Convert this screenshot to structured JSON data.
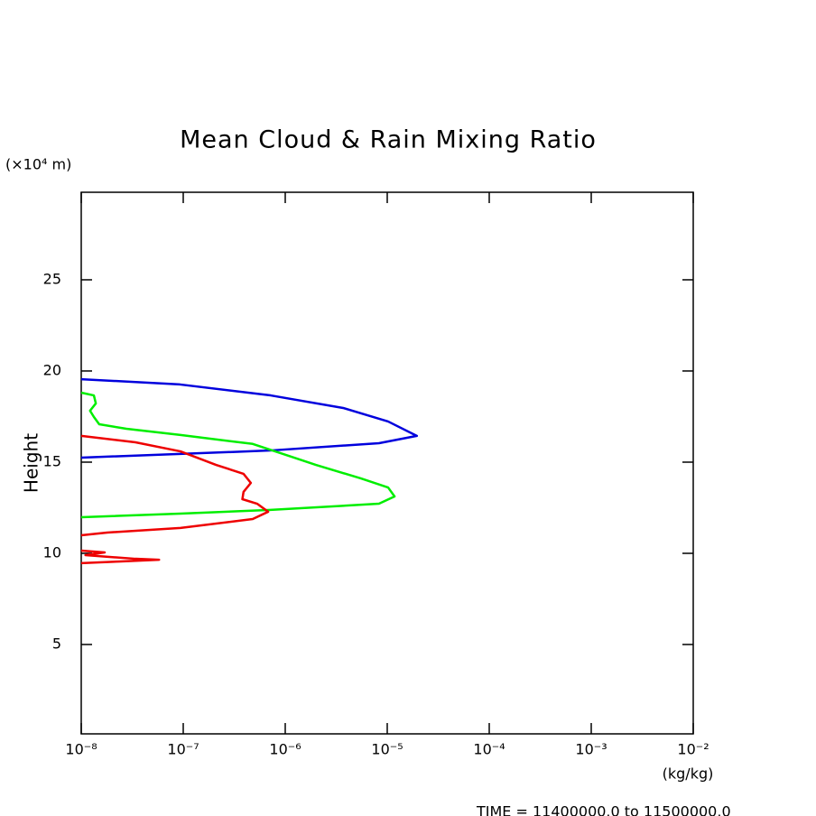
{
  "chart_data": {
    "type": "line",
    "title": "Mean Cloud & Rain Mixing Ratio",
    "y_unit": "(×10⁴ m)",
    "ylabel": "Height",
    "x_unit": "(kg/kg)",
    "footer": "TIME = 11400000.0 to 11500000.0",
    "xscale": "log",
    "xlim": [
      1e-08,
      0.01
    ],
    "xticks": [
      {
        "value": 1e-08,
        "label": "10⁻⁸"
      },
      {
        "value": 1e-07,
        "label": "10⁻⁷"
      },
      {
        "value": 1e-06,
        "label": "10⁻⁶"
      },
      {
        "value": 1e-05,
        "label": "10⁻⁵"
      },
      {
        "value": 0.0001,
        "label": "10⁻⁴"
      },
      {
        "value": 0.001,
        "label": "10⁻³"
      },
      {
        "value": 0.01,
        "label": "10⁻²"
      }
    ],
    "ylim": [
      0.1,
      29.8
    ],
    "yticks": [
      5,
      10,
      15,
      20,
      25
    ],
    "series": [
      {
        "color": "#0000dd",
        "x": [
          1e-08,
          9.3e-08,
          7.2e-07,
          3.7e-06,
          1.02e-05,
          1.95e-05,
          8.3e-06,
          7.2e-07,
          9.3e-08,
          1e-08
        ],
        "y": [
          19.55,
          19.26,
          18.66,
          17.97,
          17.23,
          16.44,
          16.04,
          15.64,
          15.45,
          15.25
        ]
      },
      {
        "color": "#00ee00",
        "x": [
          1e-08,
          1.33e-08,
          1.39e-08,
          1.22e-08,
          1.33e-08,
          1.5e-08,
          2.77e-08,
          9.4e-08,
          4.8e-07,
          2e-06,
          5.5e-06,
          1.02e-05,
          1.18e-05,
          8.3e-06,
          7.2e-07,
          9.4e-08,
          1e-08
        ],
        "y": [
          18.81,
          18.66,
          18.22,
          17.82,
          17.48,
          17.08,
          16.83,
          16.49,
          16.0,
          14.85,
          14.11,
          13.61,
          13.12,
          12.72,
          12.38,
          12.18,
          11.98
        ]
      },
      {
        "color": "#ee0000",
        "x": [
          1e-08,
          3.4e-08,
          9.4e-08,
          2.1e-07,
          3.9e-07,
          4.6e-07,
          3.9e-07,
          3.8e-07,
          5.3e-07,
          6.8e-07,
          4.8e-07,
          9.4e-08,
          1.8e-08,
          1e-08,
          null,
          1e-08,
          1.7e-08,
          1.1e-08,
          3.4e-08,
          5.8e-08,
          2.3e-08,
          1e-08
        ],
        "y": [
          16.44,
          16.09,
          15.59,
          14.85,
          14.36,
          13.86,
          13.37,
          12.97,
          12.72,
          12.28,
          11.88,
          11.39,
          11.14,
          10.99,
          null,
          10.15,
          10.05,
          9.9,
          9.7,
          9.65,
          9.55,
          9.46
        ]
      }
    ]
  }
}
